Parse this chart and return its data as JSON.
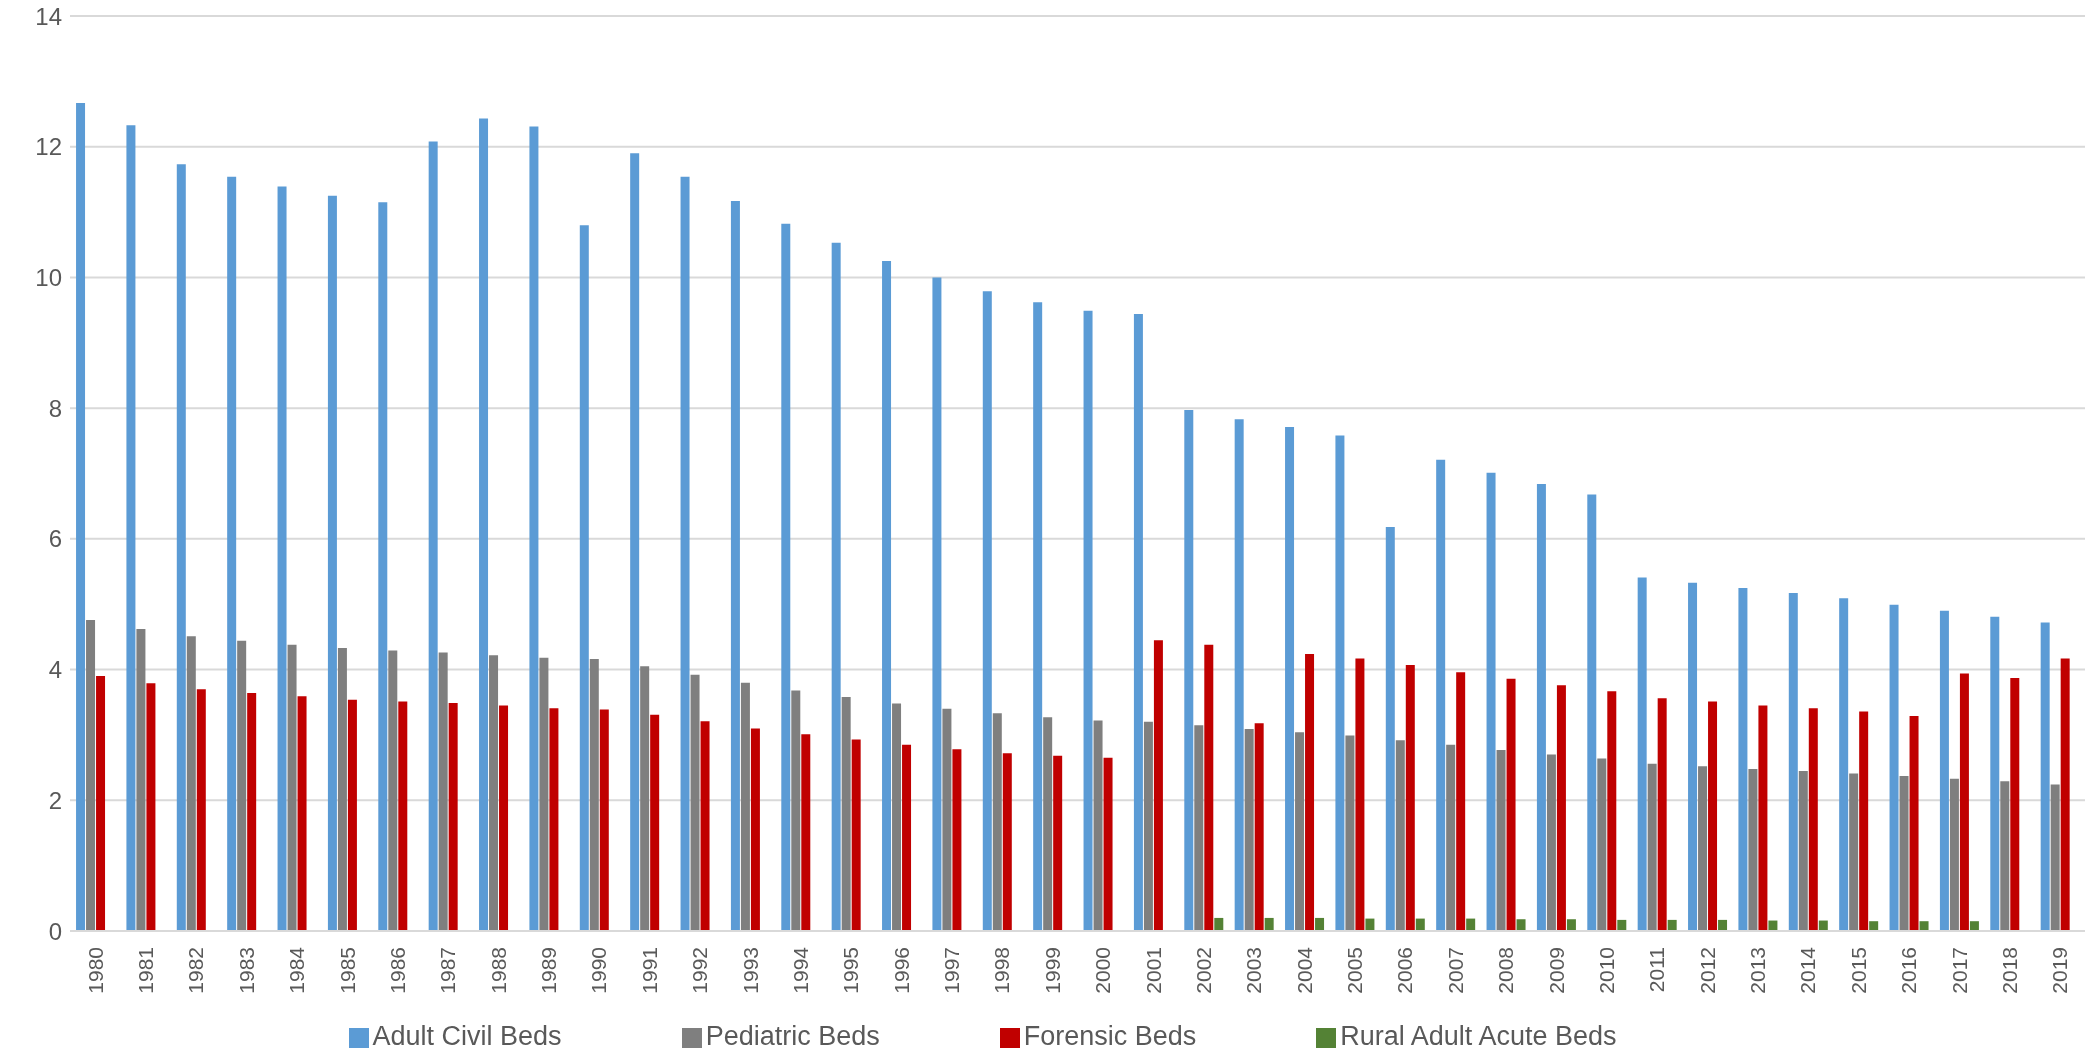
{
  "chart_data": {
    "type": "bar",
    "categories": [
      "1980",
      "1981",
      "1982",
      "1983",
      "1984",
      "1985",
      "1986",
      "1987",
      "1988",
      "1989",
      "1990",
      "1991",
      "1992",
      "1993",
      "1994",
      "1995",
      "1996",
      "1997",
      "1998",
      "1999",
      "2000",
      "2001",
      "2002",
      "2003",
      "2004",
      "2005",
      "2006",
      "2007",
      "2008",
      "2009",
      "2010",
      "2011",
      "2012",
      "2013",
      "2014",
      "2015",
      "2016",
      "2017",
      "2018",
      "2019"
    ],
    "series": [
      {
        "name": "Adult Civil Beds",
        "color": "#5b9bd5",
        "values": [
          12.67,
          12.33,
          11.73,
          11.54,
          11.39,
          11.25,
          11.15,
          12.08,
          12.43,
          12.31,
          10.8,
          11.9,
          11.54,
          11.17,
          10.82,
          10.53,
          10.25,
          10.0,
          9.79,
          9.62,
          9.49,
          9.44,
          7.97,
          7.83,
          7.71,
          7.58,
          6.18,
          7.21,
          7.01,
          6.84,
          6.68,
          5.41,
          5.33,
          5.25,
          5.17,
          5.09,
          4.99,
          4.9,
          4.81,
          4.72
        ]
      },
      {
        "name": "Pediatric Beds",
        "color": "#7f7f7f",
        "values": [
          4.76,
          4.62,
          4.51,
          4.44,
          4.38,
          4.33,
          4.29,
          4.26,
          4.22,
          4.18,
          4.16,
          4.05,
          3.92,
          3.8,
          3.68,
          3.58,
          3.48,
          3.4,
          3.33,
          3.27,
          3.22,
          3.2,
          3.15,
          3.09,
          3.04,
          2.99,
          2.92,
          2.85,
          2.77,
          2.7,
          2.64,
          2.56,
          2.52,
          2.48,
          2.45,
          2.41,
          2.37,
          2.33,
          2.29,
          2.24
        ]
      },
      {
        "name": "Forensic Beds",
        "color": "#c00000",
        "values": [
          3.9,
          3.79,
          3.7,
          3.64,
          3.59,
          3.54,
          3.51,
          3.49,
          3.45,
          3.41,
          3.39,
          3.31,
          3.21,
          3.1,
          3.01,
          2.93,
          2.85,
          2.78,
          2.72,
          2.68,
          2.65,
          4.45,
          4.38,
          3.18,
          4.24,
          4.17,
          4.07,
          3.96,
          3.86,
          3.76,
          3.67,
          3.56,
          3.51,
          3.45,
          3.41,
          3.36,
          3.29,
          3.94,
          3.87,
          4.17
        ]
      },
      {
        "name": "Rural Adult Acute Beds",
        "color": "#548235",
        "values": [
          null,
          null,
          null,
          null,
          null,
          null,
          null,
          null,
          null,
          null,
          null,
          null,
          null,
          null,
          null,
          null,
          null,
          null,
          null,
          null,
          null,
          null,
          0.2,
          0.2,
          0.2,
          0.19,
          0.19,
          0.19,
          0.18,
          0.18,
          0.17,
          0.17,
          0.17,
          0.16,
          0.16,
          0.15,
          0.15,
          0.15,
          null,
          null
        ]
      }
    ],
    "ylim": [
      0,
      14
    ],
    "yticks": [
      0,
      2,
      4,
      6,
      8,
      10,
      12,
      14
    ],
    "grid": "y",
    "legend": "bottom"
  }
}
